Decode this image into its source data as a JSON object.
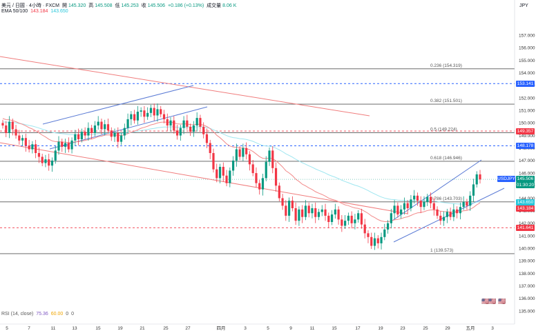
{
  "header": {
    "symbol_title": "美元 / 日圓 · 4小時 · FXCM",
    "open_label": "開",
    "open": "145.320",
    "high_label": "高",
    "high": "145.508",
    "low_label": "低",
    "low": "145.253",
    "close_label": "收",
    "close": "145.506",
    "change": "+0.186 (+0.13%)",
    "volume_label": "成交量",
    "volume": "8.06 K"
  },
  "ema": {
    "label": "EMA 50/100",
    "short_val": "143.184",
    "long_val": "143.650"
  },
  "rsi": {
    "label": "RSI (14, close)",
    "v1": "75.36",
    "v2": "60.00",
    "z1": "0",
    "z2": "0"
  },
  "currency": "JPY",
  "chart_data": {
    "type": "candlestick",
    "symbol": "USDJPY",
    "ylim": [
      134.4,
      158.6
    ],
    "y_ticks": [
      "157.000",
      "156.000",
      "155.000",
      "154.000",
      "153.000",
      "152.000",
      "151.000",
      "150.000",
      "149.000",
      "148.000",
      "147.000",
      "146.000",
      "145.000",
      "144.000",
      "143.000",
      "142.000",
      "141.000",
      "140.000",
      "139.000",
      "138.000",
      "137.000",
      "136.000",
      "135.000"
    ],
    "x_ticks": [
      "5",
      "7",
      "11",
      "13",
      "15",
      "19",
      "21",
      "25",
      "27",
      "四月",
      "3",
      "5",
      "9",
      "11",
      "15",
      "17",
      "19",
      "23",
      "25",
      "29",
      "五月",
      "3"
    ],
    "fib_levels": [
      {
        "label": "0.236 (154.319)",
        "value": 154.319
      },
      {
        "label": "0.382 (151.501)",
        "value": 151.501
      },
      {
        "label": "0.5 (149.224)",
        "value": 149.224
      },
      {
        "label": "0.618 (146.946)",
        "value": 146.946
      },
      {
        "label": "0.786 (143.703)",
        "value": 143.703
      },
      {
        "label": "1 (139.573)",
        "value": 139.573
      }
    ],
    "price_tags": [
      {
        "label": "153.141",
        "value": 153.141,
        "color": "#2962ff"
      },
      {
        "label": "149.357",
        "value": 149.357,
        "color": "#f23645"
      },
      {
        "label": "148.178",
        "value": 148.178,
        "color": "#2962ff"
      },
      {
        "label": "USDJPY",
        "value": 145.506,
        "color": "#2962ff"
      },
      {
        "label": "145.506",
        "value": 145.506,
        "color": "#089981"
      },
      {
        "label": "01:30:20",
        "value": 145.506,
        "color": "#089981"
      },
      {
        "label": "143.650",
        "value": 143.65,
        "color": "#26c6da"
      },
      {
        "label": "143.184",
        "value": 143.184,
        "color": "#f23645"
      },
      {
        "label": "141.641",
        "value": 141.641,
        "color": "#f23645"
      }
    ],
    "close_series": [
      149.8,
      149.2,
      150.1,
      149.5,
      149.0,
      148.6,
      148.8,
      148.2,
      147.9,
      148.3,
      147.6,
      147.3,
      146.8,
      147.1,
      146.6,
      147.0,
      147.8,
      148.5,
      148.1,
      148.4,
      147.9,
      148.6,
      149.1,
      148.7,
      149.3,
      149.0,
      149.6,
      149.2,
      149.8,
      150.1,
      149.5,
      149.9,
      149.4,
      148.9,
      149.2,
      148.5,
      149.0,
      149.6,
      150.3,
      150.7,
      150.2,
      150.9,
      151.0,
      150.5,
      150.8,
      151.2,
      150.6,
      151.1,
      150.7,
      150.3,
      149.8,
      150.2,
      149.4,
      149.0,
      149.6,
      150.2,
      149.7,
      149.3,
      149.8,
      150.4,
      149.7,
      149.1,
      148.4,
      147.6,
      146.3,
      145.6,
      146.5,
      145.8,
      145.2,
      146.2,
      147.0,
      147.9,
      147.3,
      148.0,
      147.5,
      146.7,
      146.0,
      145.2,
      144.7,
      145.6,
      146.9,
      147.8,
      146.4,
      145.0,
      144.0,
      143.4,
      142.6,
      143.8,
      143.2,
      142.2,
      143.1,
      142.5,
      143.4,
      142.8,
      143.2,
      142.5,
      142.9,
      143.1,
      142.6,
      142.1,
      142.7,
      143.1,
      142.3,
      141.8,
      142.2,
      142.6,
      142.0,
      142.3,
      142.8,
      141.9,
      141.2,
      140.9,
      140.2,
      140.8,
      140.4,
      140.9,
      141.5,
      142.0,
      142.8,
      143.4,
      142.7,
      143.1,
      143.6,
      143.2,
      143.9,
      144.2,
      143.8,
      143.3,
      143.7,
      144.1,
      143.6,
      143.1,
      142.6,
      142.2,
      142.5,
      142.9,
      142.5,
      143.1,
      142.8,
      143.3,
      143.7,
      143.4,
      144.2,
      145.1,
      145.9,
      145.5
    ]
  }
}
